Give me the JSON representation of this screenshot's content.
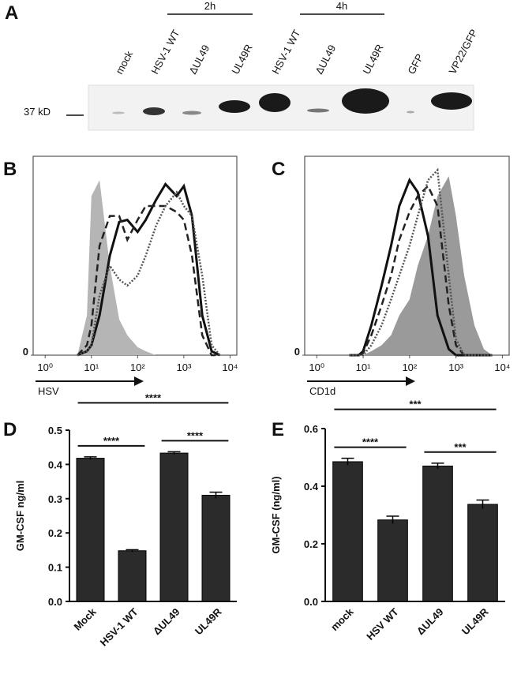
{
  "blot": {
    "panel": "A",
    "marker": "37 kD",
    "groups": [
      {
        "label": "2h"
      },
      {
        "label": "4h"
      }
    ],
    "lanes": [
      "mock",
      "HSV-1 WT",
      "ΔUL49",
      "UL49R",
      "HSV-1 WT",
      "ΔUL49",
      "UL49R",
      "GFP",
      "VP22/GFP"
    ]
  },
  "chart_data": [
    {
      "type": "line",
      "panel": "B",
      "xlabel": "HSV",
      "log_x": true,
      "x": [
        5,
        8,
        10,
        15,
        25,
        40,
        60,
        100,
        150,
        250,
        400,
        700,
        1000,
        1500,
        2500,
        4000,
        6000
      ],
      "xlim": [
        0.55,
        14000
      ],
      "xticks": [
        {
          "value": 1,
          "label": "10⁰"
        },
        {
          "value": 10,
          "label": "10¹"
        },
        {
          "value": 100,
          "label": "10²"
        },
        {
          "value": 1000,
          "label": "10³"
        },
        {
          "value": 10000,
          "label": "10⁴"
        }
      ],
      "ylim": [
        0,
        100
      ],
      "yticks": [
        0
      ],
      "series": [
        {
          "color": "#b5b5b5",
          "style": "fill",
          "values": [
            0,
            20,
            80,
            88,
            45,
            18,
            10,
            4,
            2,
            0,
            0,
            0,
            0,
            0,
            0,
            0,
            0
          ]
        },
        {
          "color": "#111111",
          "style": "solid",
          "values": [
            0,
            2,
            5,
            20,
            50,
            67,
            68,
            62,
            68,
            78,
            86,
            80,
            85,
            70,
            20,
            2,
            0
          ]
        },
        {
          "color": "#222222",
          "style": "dashed",
          "values": [
            0,
            5,
            15,
            55,
            70,
            70,
            58,
            68,
            75,
            75,
            75,
            72,
            68,
            50,
            10,
            0,
            0
          ]
        },
        {
          "color": "#555555",
          "style": "dotted",
          "values": [
            0,
            2,
            5,
            30,
            45,
            38,
            35,
            40,
            50,
            65,
            75,
            82,
            75,
            70,
            40,
            5,
            0
          ]
        }
      ]
    },
    {
      "type": "line",
      "panel": "C",
      "xlabel": "CD1d",
      "log_x": true,
      "x": [
        5,
        8,
        10,
        15,
        25,
        40,
        60,
        100,
        150,
        250,
        400,
        700,
        1000,
        1500,
        2500,
        4000,
        6000
      ],
      "xlim": [
        0.55,
        14000
      ],
      "xticks": [
        {
          "value": 1,
          "label": "10⁰"
        },
        {
          "value": 10,
          "label": "10¹"
        },
        {
          "value": 100,
          "label": "10²"
        },
        {
          "value": 1000,
          "label": "10³"
        },
        {
          "value": 10000,
          "label": "10⁴"
        }
      ],
      "ylim": [
        0,
        100
      ],
      "yticks": [
        0
      ],
      "series": [
        {
          "color": "#9a9a9a",
          "style": "fill",
          "values": [
            0,
            0,
            0,
            2,
            5,
            10,
            20,
            28,
            45,
            60,
            80,
            90,
            70,
            40,
            15,
            3,
            0
          ]
        },
        {
          "color": "#111111",
          "style": "solid",
          "values": [
            0,
            0,
            2,
            15,
            35,
            55,
            75,
            88,
            82,
            60,
            20,
            3,
            0,
            0,
            0,
            0,
            0
          ]
        },
        {
          "color": "#222222",
          "style": "dashed",
          "values": [
            0,
            0,
            1,
            10,
            25,
            40,
            58,
            72,
            80,
            85,
            75,
            25,
            5,
            0,
            0,
            0,
            0
          ]
        },
        {
          "color": "#555555",
          "style": "dotted",
          "values": [
            0,
            0,
            0,
            5,
            15,
            28,
            40,
            55,
            70,
            88,
            93,
            40,
            8,
            0,
            0,
            0,
            0
          ]
        }
      ]
    },
    {
      "type": "bar",
      "panel": "D",
      "ylabel": "GM-CSF ng/ml",
      "color": "#2b2b2b",
      "categories": [
        "Mock",
        "HSV-1  WT",
        "ΔUL49",
        "UL49R"
      ],
      "values": [
        0.418,
        0.148,
        0.433,
        0.31
      ],
      "errors": [
        0.004,
        0.003,
        0.004,
        0.009
      ],
      "ylim": [
        0,
        0.5
      ],
      "yticks": [
        {
          "value": 0,
          "label": "0.0"
        },
        0.1,
        0.2,
        0.3,
        0.4,
        0.5
      ],
      "annotations": [
        {
          "text": "****",
          "from": 0,
          "to": 1
        },
        {
          "text": "****",
          "from": 0,
          "to": 3
        },
        {
          "text": "****",
          "from": 2,
          "to": 3
        }
      ]
    },
    {
      "type": "bar",
      "panel": "E",
      "ylabel": "GM-CSF (ng/ml)",
      "color": "#2b2b2b",
      "categories": [
        "mock",
        "HSV WT",
        "ΔUL49",
        "UL49R"
      ],
      "values": [
        0.485,
        0.283,
        0.47,
        0.337
      ],
      "errors": [
        0.012,
        0.013,
        0.01,
        0.015
      ],
      "ylim": [
        0,
        0.6
      ],
      "yticks": [
        {
          "value": 0,
          "label": "0.0"
        },
        0.2,
        0.4,
        0.6
      ],
      "annotations": [
        {
          "text": "****",
          "from": 0,
          "to": 1
        },
        {
          "text": "***",
          "from": 0,
          "to": 3
        },
        {
          "text": "***",
          "from": 2,
          "to": 3
        }
      ]
    }
  ]
}
